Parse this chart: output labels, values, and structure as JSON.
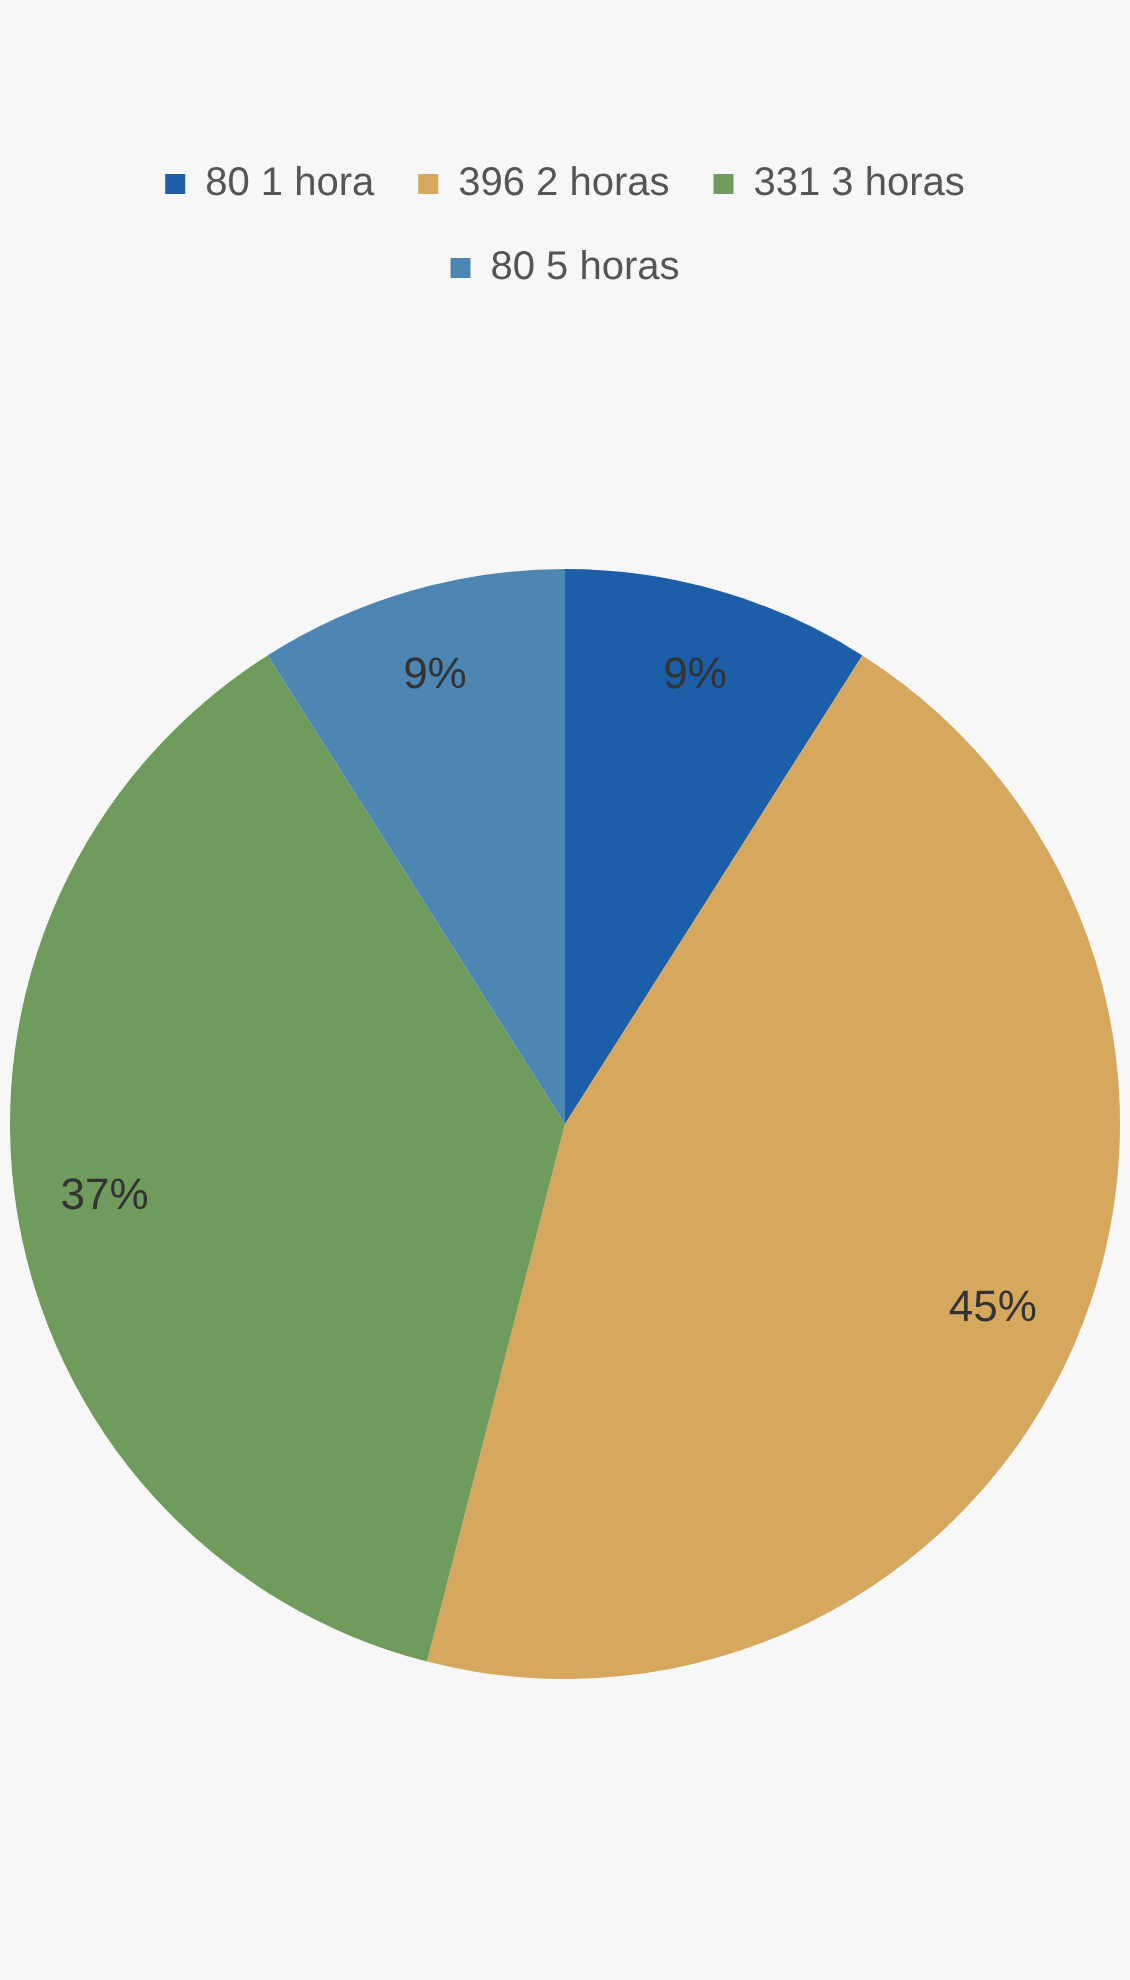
{
  "chart_data": {
    "type": "pie",
    "categories": [
      "80 1 hora",
      "396 2 horas",
      "331 3 horas",
      "80 5 horas"
    ],
    "values": [
      9,
      45,
      37,
      9
    ],
    "colors": [
      "#1c5ea8",
      "#d6a85e",
      "#6f9b5c",
      "#4d86b2"
    ],
    "value_labels": [
      "9%",
      "45%",
      "37%",
      "9%"
    ],
    "legend": "top"
  }
}
